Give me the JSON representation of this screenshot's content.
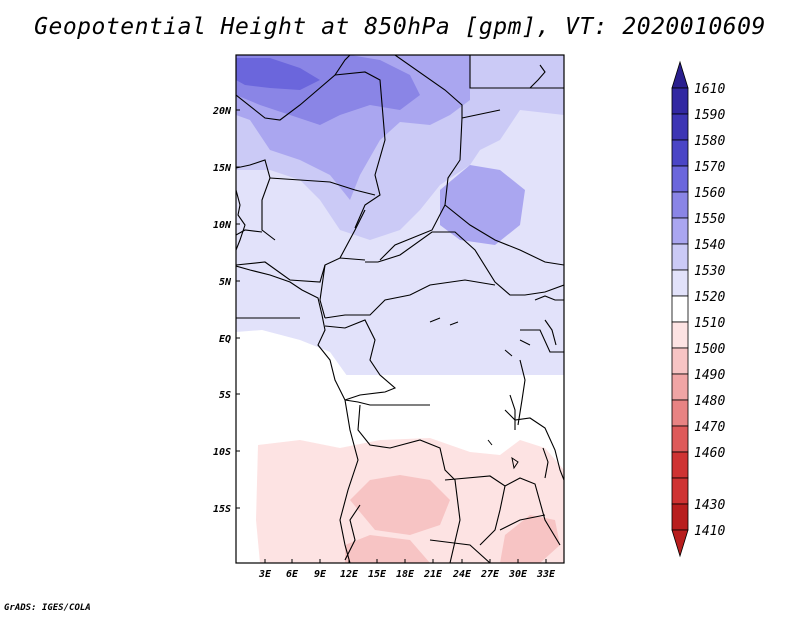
{
  "title": "Geopotential Height at 850hPa [gpm], VT: 2020010609",
  "footer": "GrADS: IGES/COLA",
  "colors": {
    "c1610": "#2a1f8e",
    "c1590": "#3228a2",
    "c1580": "#3d35b4",
    "c1570": "#4a45c6",
    "c1560": "#6b66dc",
    "c1550": "#8a85e6",
    "c1540": "#aaa6f0",
    "c1530": "#cbcaf6",
    "c1520": "#e2e2fa",
    "c1510": "#ffffff",
    "c1500": "#fde3e3",
    "c1490": "#f7c4c4",
    "c1480": "#f0a5a5",
    "c1470": "#e88383",
    "c1460": "#de5a5a",
    "c1430": "#cf3333",
    "c1410": "#b81e1e"
  },
  "map": {
    "lat_labels": [
      "20N",
      "15N",
      "10N",
      "5N",
      "EQ",
      "5S",
      "10S",
      "15S"
    ],
    "lon_labels": [
      "3E",
      "6E",
      "9E",
      "12E",
      "15E",
      "18E",
      "21E",
      "24E",
      "27E",
      "30E",
      "33E"
    ]
  },
  "colorbar": {
    "labels": [
      "1610",
      "1590",
      "1580",
      "1570",
      "1560",
      "1550",
      "1540",
      "1530",
      "1520",
      "1510",
      "1500",
      "1490",
      "1480",
      "1470",
      "1460",
      "1430",
      "1410"
    ]
  }
}
